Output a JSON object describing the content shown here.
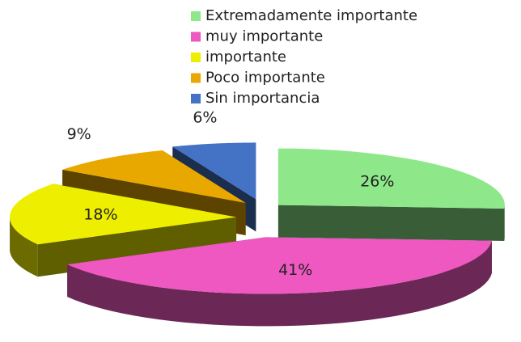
{
  "chart_data": {
    "type": "pie",
    "categories": [
      "Extremadamente importante",
      "muy importante",
      "importante",
      "Poco importante",
      "Sin importancia"
    ],
    "values": [
      26,
      41,
      18,
      9,
      6
    ],
    "value_labels": [
      "26%",
      "41%",
      "18%",
      "9%",
      "6%"
    ],
    "colors": [
      "#8ee88a",
      "#ee58c0",
      "#eeee00",
      "#e8a800",
      "#4472c4"
    ],
    "legend": "top",
    "three_d": true,
    "exploded": true
  }
}
